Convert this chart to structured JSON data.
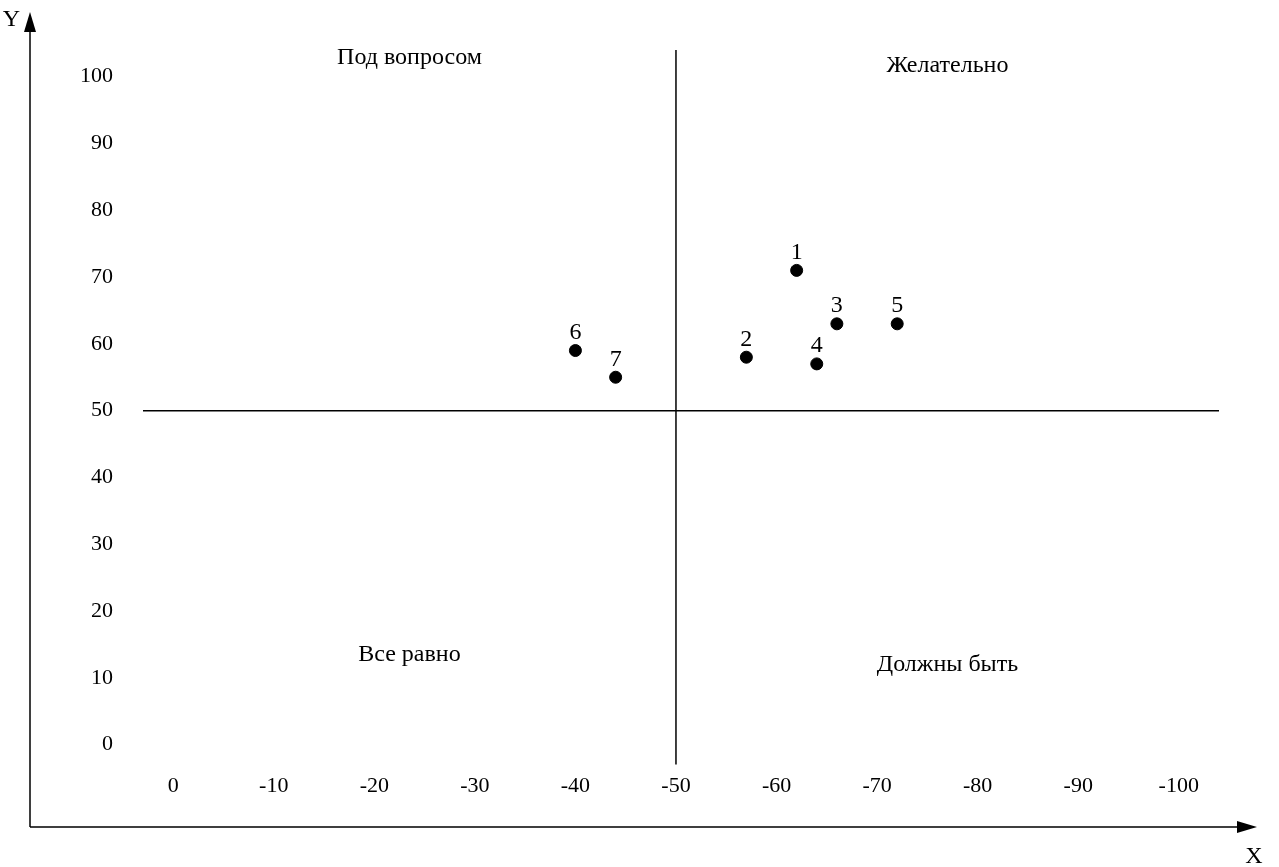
{
  "chart_data": {
    "type": "scatter",
    "xlabel": "X",
    "ylabel": "Y",
    "x": [
      -62,
      -57,
      -66,
      -64,
      -72,
      -40,
      -44
    ],
    "series": [
      {
        "color": "#000000",
        "values": [
          71,
          58,
          63,
          57,
          63,
          59,
          55
        ]
      }
    ],
    "marker": "circle",
    "grid": false,
    "legend": false,
    "xlim": [
      3,
      -104
    ],
    "ylim": [
      -3,
      104
    ],
    "xticks": [
      0,
      -10,
      -20,
      -30,
      -40,
      -50,
      -60,
      -70,
      -80,
      -90,
      -100
    ],
    "yticks": [
      0,
      10,
      20,
      30,
      40,
      50,
      60,
      70,
      80,
      90,
      100
    ],
    "ref_lines": [
      {
        "axis": "x",
        "value": -50,
        "color": "#000000"
      },
      {
        "axis": "y",
        "value": 50,
        "color": "#000000"
      }
    ],
    "annotations": [
      "Под вопросом",
      "Желательно",
      "Все равно",
      "Должны быть",
      {
        "text": "1",
        "x": -62,
        "y": 71
      },
      {
        "text": "2",
        "x": -57,
        "y": 58
      },
      {
        "text": "3",
        "x": -66,
        "y": 63
      },
      {
        "text": "4",
        "x": -64,
        "y": 57
      },
      {
        "text": "5",
        "x": -72,
        "y": 63
      },
      {
        "text": "6",
        "x": -40,
        "y": 59
      },
      {
        "text": "7",
        "x": -44,
        "y": 55
      }
    ]
  }
}
